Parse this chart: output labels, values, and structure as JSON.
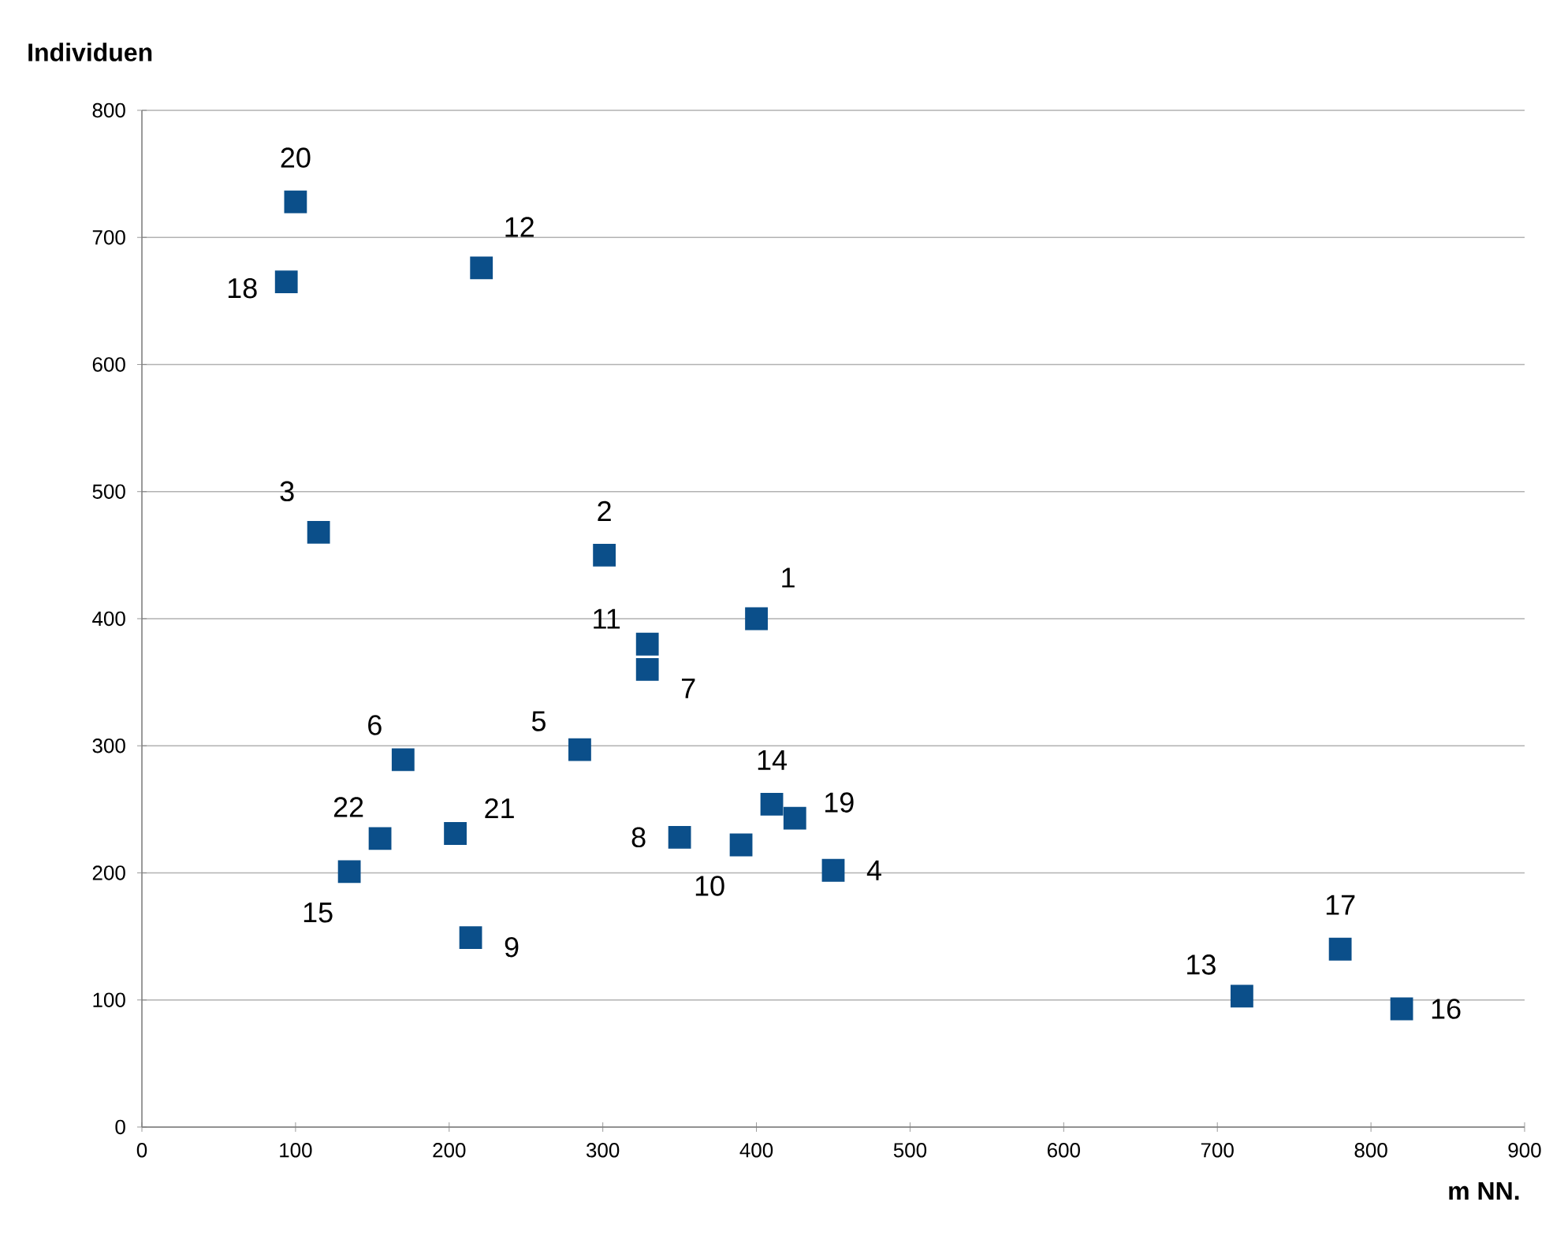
{
  "chart_data": {
    "type": "scatter",
    "xlabel": "m NN.",
    "ylabel": "Individuen",
    "xlim": [
      0,
      900
    ],
    "xticks": [
      0,
      100,
      200,
      300,
      400,
      500,
      600,
      700,
      800,
      900
    ],
    "ylim": [
      0,
      800
    ],
    "yticks": [
      0,
      100,
      200,
      300,
      400,
      500,
      600,
      700,
      800
    ],
    "grid": "y",
    "marker": "square",
    "series": [
      {
        "color": "#0b4f8a",
        "x": [
          400,
          301,
          115,
          450,
          285,
          170,
          329,
          350,
          214,
          390,
          329,
          221,
          716,
          410,
          135,
          820,
          780,
          94,
          425,
          100,
          204,
          155
        ],
        "values": [
          400,
          450,
          468,
          202,
          297,
          289,
          360,
          228,
          149,
          222,
          380,
          676,
          103,
          254,
          201,
          93,
          140,
          665,
          243,
          728,
          231,
          227
        ]
      }
    ],
    "annotations": [
      {
        "text": "1",
        "x": 400,
        "y": 400
      },
      {
        "text": "2",
        "x": 301,
        "y": 450
      },
      {
        "text": "3",
        "x": 115,
        "y": 468
      },
      {
        "text": "4",
        "x": 450,
        "y": 202
      },
      {
        "text": "5",
        "x": 285,
        "y": 297
      },
      {
        "text": "6",
        "x": 170,
        "y": 289
      },
      {
        "text": "7",
        "x": 329,
        "y": 360
      },
      {
        "text": "8",
        "x": 350,
        "y": 228
      },
      {
        "text": "9",
        "x": 214,
        "y": 149
      },
      {
        "text": "10",
        "x": 390,
        "y": 222
      },
      {
        "text": "11",
        "x": 329,
        "y": 380
      },
      {
        "text": "12",
        "x": 221,
        "y": 676
      },
      {
        "text": "13",
        "x": 716,
        "y": 103
      },
      {
        "text": "14",
        "x": 410,
        "y": 254
      },
      {
        "text": "15",
        "x": 135,
        "y": 201
      },
      {
        "text": "16",
        "x": 820,
        "y": 93
      },
      {
        "text": "17",
        "x": 780,
        "y": 140
      },
      {
        "text": "18",
        "x": 94,
        "y": 665
      },
      {
        "text": "19",
        "x": 425,
        "y": 243
      },
      {
        "text": "20",
        "x": 100,
        "y": 728
      },
      {
        "text": "21",
        "x": 204,
        "y": 231
      },
      {
        "text": "22",
        "x": 155,
        "y": 227
      }
    ]
  }
}
